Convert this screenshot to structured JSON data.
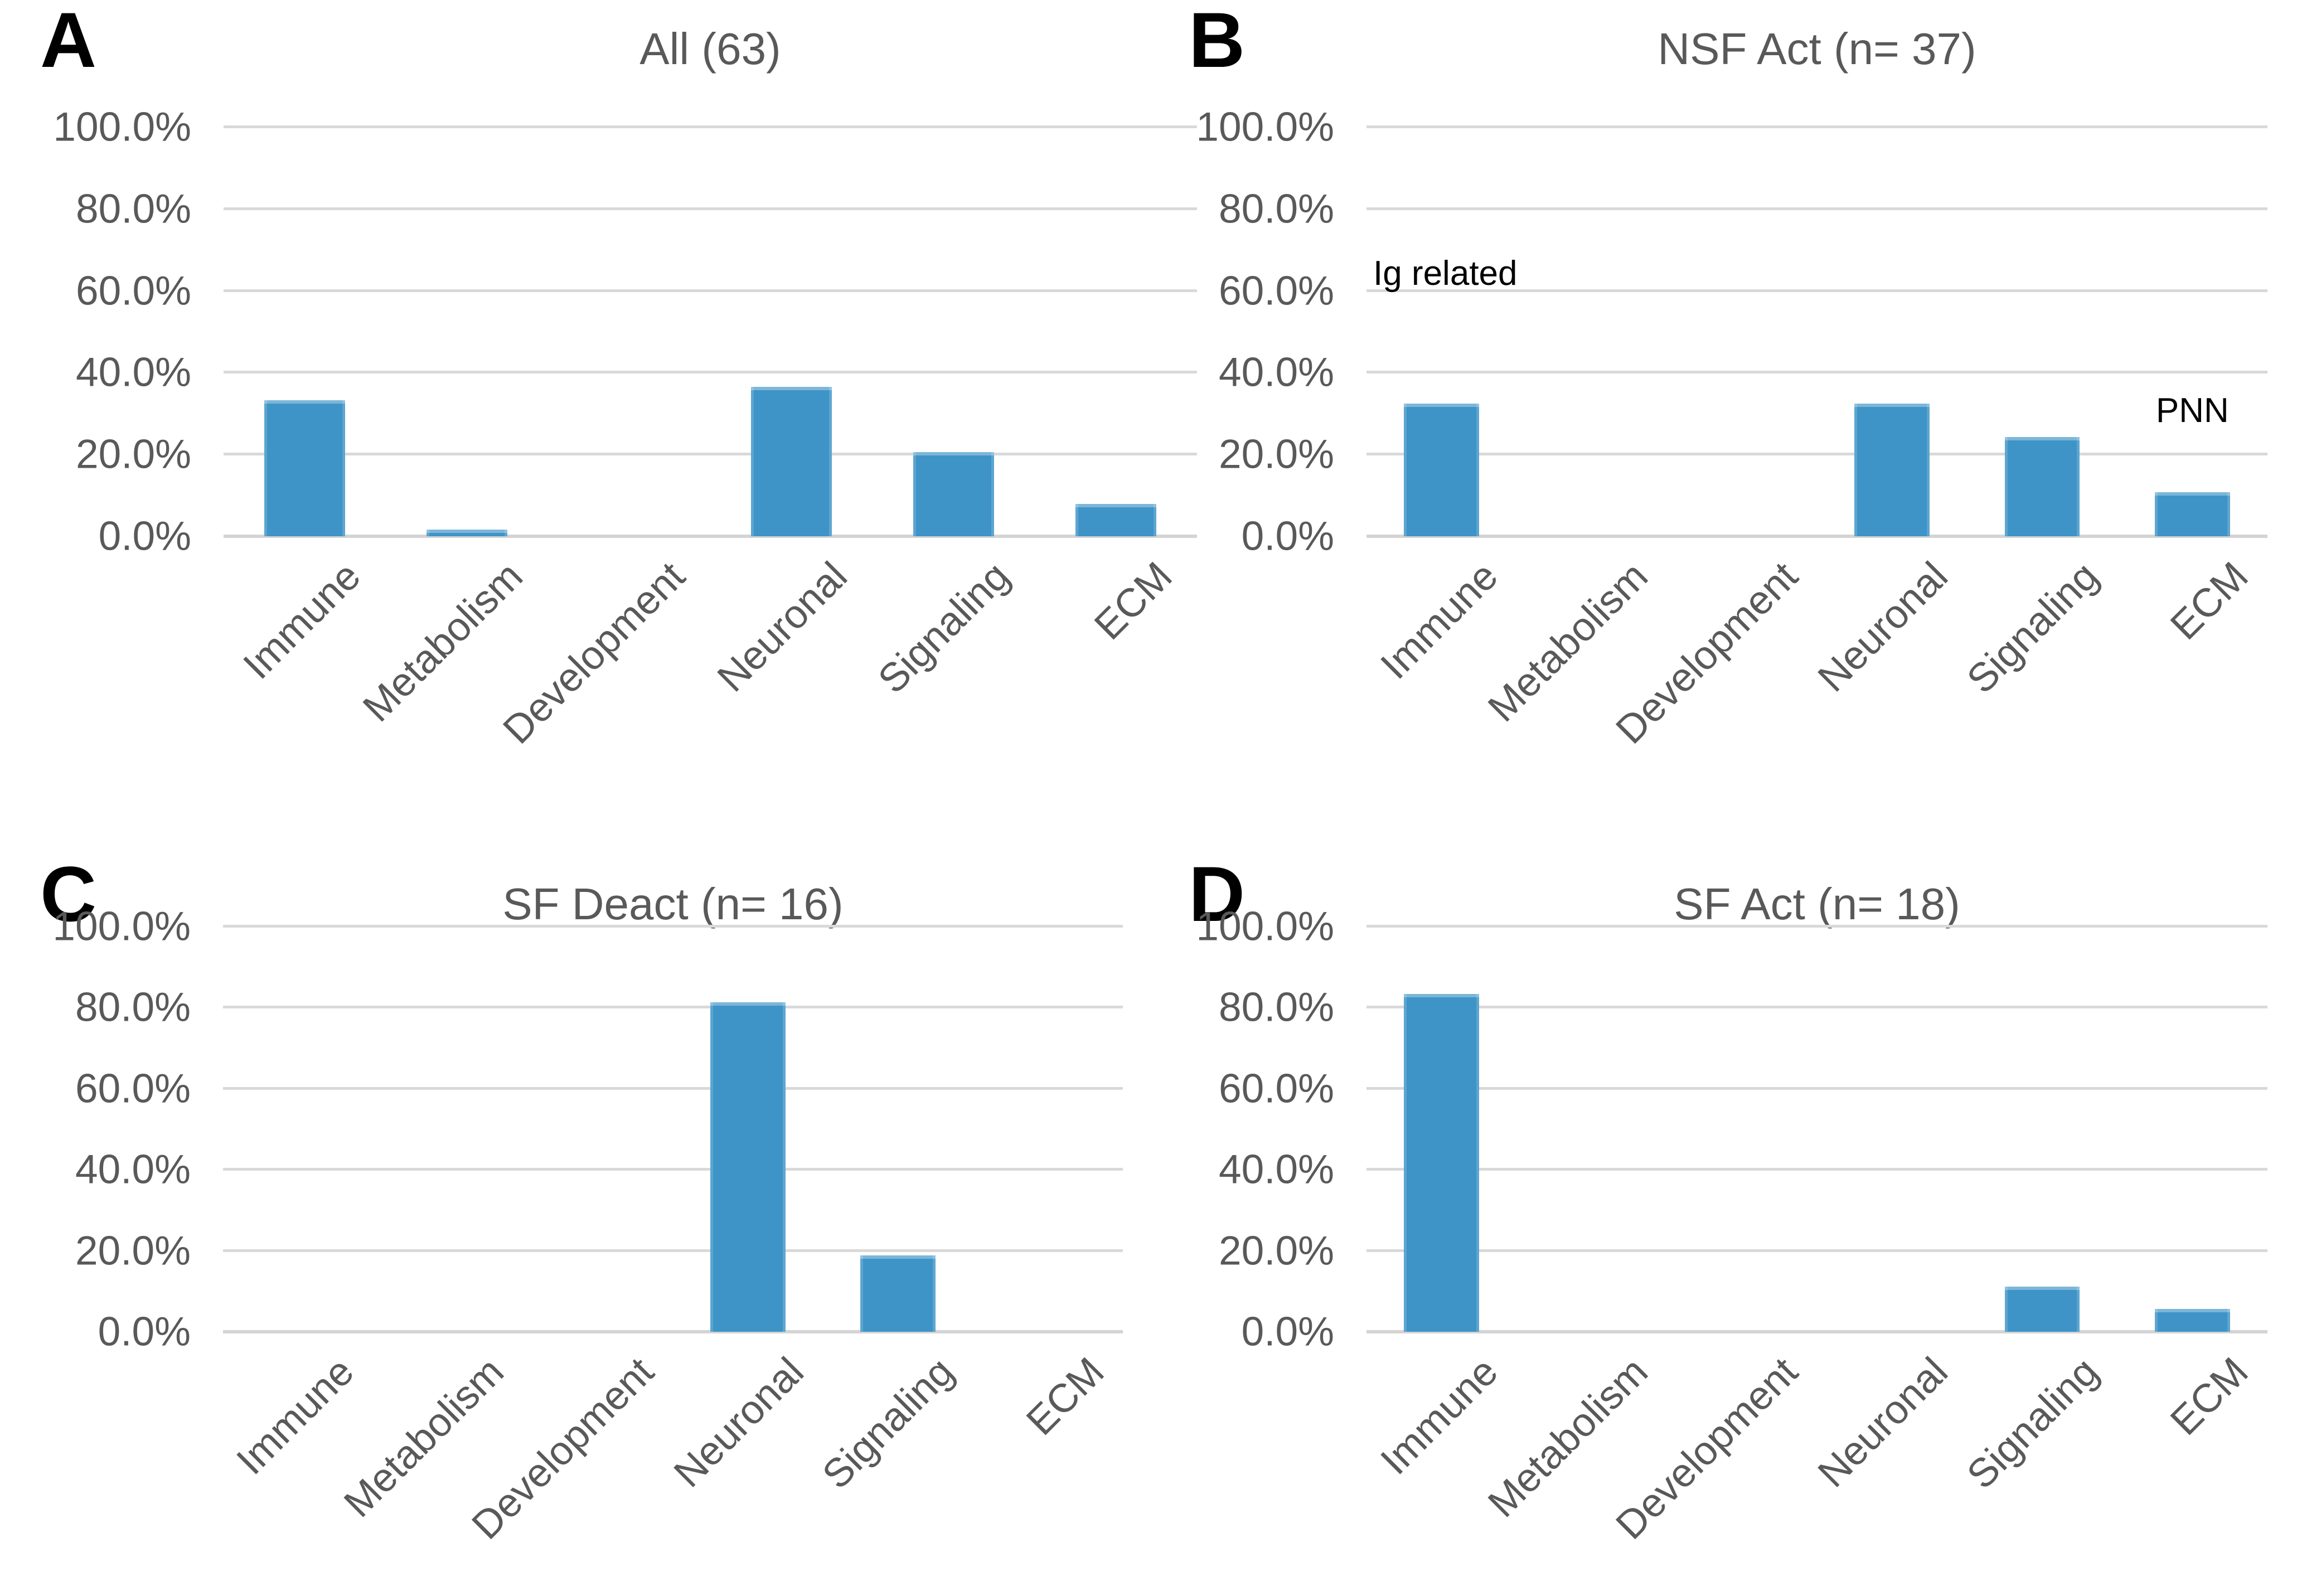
{
  "figure": {
    "background": "#ffffff",
    "bar_color": "#3e94c7",
    "gridline_color": "#d9d9d9",
    "axis_text_color": "#595959",
    "title_color": "#595959"
  },
  "y_axis": {
    "tick_labels": [
      "100.0%",
      "80.0%",
      "60.0%",
      "40.0%",
      "20.0%",
      "0.0%"
    ],
    "min": 0,
    "max": 100,
    "step": 20,
    "grid": true
  },
  "categories": [
    "Immune",
    "Metabolism",
    "Development",
    "Neuronal",
    "Signaling",
    "ECM"
  ],
  "chart_data": [
    {
      "type": "bar",
      "panel_letter": "A",
      "title": "All (63)",
      "categories": [
        "Immune",
        "Metabolism",
        "Development",
        "Neuronal",
        "Signaling",
        "ECM"
      ],
      "values": [
        33.3,
        1.6,
        0,
        36.5,
        20.6,
        7.9
      ],
      "xlabel": "",
      "ylabel": "",
      "ylim": [
        0,
        100
      ],
      "legend": false,
      "annotations": []
    },
    {
      "type": "bar",
      "panel_letter": "B",
      "title": "NSF Act (n= 37)",
      "categories": [
        "Immune",
        "Metabolism",
        "Development",
        "Neuronal",
        "Signaling",
        "ECM"
      ],
      "values": [
        32.4,
        0,
        0,
        32.4,
        24.3,
        10.8
      ],
      "xlabel": "",
      "ylabel": "",
      "ylim": [
        0,
        100
      ],
      "legend": false,
      "annotations": [
        {
          "text": "Ig related",
          "anchor": "plot-left",
          "height_pct": 60
        },
        {
          "text": "PNN",
          "anchor": "category",
          "over_category": "ECM",
          "category_index": 5,
          "height_pct": 26.5
        }
      ]
    },
    {
      "type": "bar",
      "panel_letter": "C",
      "title": "SF Deact (n= 16)",
      "categories": [
        "Immune",
        "Metabolism",
        "Development",
        "Neuronal",
        "Signaling",
        "ECM"
      ],
      "values": [
        0,
        0,
        0,
        81.3,
        18.8,
        0
      ],
      "xlabel": "",
      "ylabel": "",
      "ylim": [
        0,
        100
      ],
      "legend": false,
      "annotations": []
    },
    {
      "type": "bar",
      "panel_letter": "D",
      "title": "SF Act (n= 18)",
      "categories": [
        "Immune",
        "Metabolism",
        "Development",
        "Neuronal",
        "Signaling",
        "ECM"
      ],
      "values": [
        83.3,
        0,
        0,
        0,
        11.1,
        5.6
      ],
      "xlabel": "",
      "ylabel": "",
      "ylim": [
        0,
        100
      ],
      "legend": false,
      "annotations": []
    }
  ]
}
